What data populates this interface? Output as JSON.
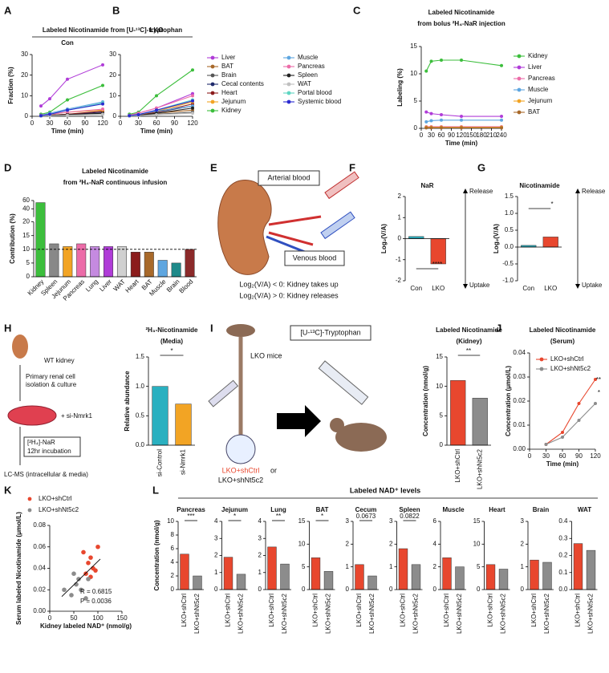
{
  "chart_data": [
    {
      "panel": "A",
      "type": "line",
      "title": "Labeled Nicotinamide from [U-¹³C]-tryptophan",
      "subtitle": "Con",
      "ylabel": "Fraction (%)",
      "xlabel": "Time (min)",
      "x": [
        15,
        30,
        60,
        120
      ],
      "xlim": [
        0,
        120
      ],
      "xticks": [
        0,
        30,
        60,
        90,
        120
      ],
      "ylim": [
        0,
        30
      ],
      "yticks": [
        0,
        10,
        20,
        30
      ],
      "series": [
        {
          "color": "#b03cd8",
          "values": [
            5,
            8.5,
            18,
            25
          ]
        },
        {
          "color": "#a8692a",
          "values": [
            0.3,
            0.6,
            1,
            1.5
          ]
        },
        {
          "color": "#555555",
          "values": [
            0.2,
            0.4,
            0.6,
            1
          ]
        },
        {
          "color": "#1f2a6b",
          "values": [
            0.3,
            0.5,
            1,
            2
          ]
        },
        {
          "color": "#8b1c1c",
          "values": [
            0.3,
            0.5,
            1,
            2.5
          ]
        },
        {
          "color": "#f2a424",
          "values": [
            0.5,
            1,
            2,
            3
          ]
        },
        {
          "color": "#3cbe3c",
          "values": [
            1,
            2,
            8,
            15
          ]
        },
        {
          "color": "#5ea6e0",
          "values": [
            0.5,
            1.5,
            3.5,
            7
          ]
        },
        {
          "color": "#ec6ca8",
          "values": [
            0.5,
            1,
            2,
            3.5
          ]
        },
        {
          "color": "#222222",
          "values": [
            0.2,
            0.4,
            0.8,
            1.5
          ]
        },
        {
          "color": "#c0c0c0",
          "values": [
            0.2,
            0.3,
            0.5,
            1
          ]
        },
        {
          "color": "#5fd6c2",
          "values": [
            0.3,
            1,
            3,
            6.5
          ]
        },
        {
          "color": "#2b2bd0",
          "values": [
            0.3,
            1,
            3,
            6
          ]
        }
      ]
    },
    {
      "panel": "B",
      "type": "line",
      "subtitle": "LKO",
      "xlabel": "Time (min)",
      "x": [
        15,
        30,
        60,
        120
      ],
      "xlim": [
        0,
        120
      ],
      "xticks": [
        0,
        30,
        60,
        90,
        120
      ],
      "ylim": [
        0,
        30
      ],
      "yticks": [
        0,
        10,
        20,
        30
      ],
      "series": [
        {
          "name": "Liver",
          "color": "#b03cd8",
          "values": [
            0.5,
            1.5,
            4,
            11
          ]
        },
        {
          "name": "BAT",
          "color": "#a8692a",
          "values": [
            0.3,
            0.5,
            1.5,
            3
          ]
        },
        {
          "name": "Brain",
          "color": "#555555",
          "values": [
            0.2,
            0.4,
            1,
            2
          ]
        },
        {
          "name": "Cecal contents",
          "color": "#1f2a6b",
          "values": [
            0.3,
            0.8,
            2,
            5
          ]
        },
        {
          "name": "Heart",
          "color": "#8b1c1c",
          "values": [
            0.3,
            0.7,
            2,
            6
          ]
        },
        {
          "name": "Jejunum",
          "color": "#f2a424",
          "values": [
            0.3,
            0.8,
            2.5,
            7
          ]
        },
        {
          "name": "Kidney",
          "color": "#3cbe3c",
          "values": [
            1,
            2,
            10,
            22.5
          ]
        },
        {
          "name": "Muscle",
          "color": "#5ea6e0",
          "values": [
            0.3,
            1,
            2.5,
            5
          ]
        },
        {
          "name": "Pancreas",
          "color": "#ec6ca8",
          "values": [
            0.5,
            1.5,
            4,
            10
          ]
        },
        {
          "name": "Spleen",
          "color": "#222222",
          "values": [
            0.2,
            0.5,
            1.5,
            4
          ]
        },
        {
          "name": "WAT",
          "color": "#c0c0c0",
          "values": [
            0.2,
            0.3,
            0.8,
            1.5
          ]
        },
        {
          "name": "Portal blood",
          "color": "#5fd6c2",
          "values": [
            0.3,
            0.8,
            3,
            8
          ]
        },
        {
          "name": "Systemic blood",
          "color": "#2b2bd0",
          "values": [
            0.3,
            0.8,
            3,
            7.5
          ]
        }
      ]
    },
    {
      "panel": "C",
      "type": "line",
      "title": "Labeled Nicotinamide",
      "subtitle": "from bolus ²H₄-NaR injection",
      "ylabel": "Labeling (%)",
      "xlabel": "Time (min)",
      "x": [
        15,
        30,
        60,
        120,
        240
      ],
      "xlim": [
        0,
        240
      ],
      "xticks": [
        0,
        30,
        60,
        90,
        120,
        150,
        180,
        210,
        240
      ],
      "ylim": [
        0,
        15
      ],
      "yticks": [
        0,
        5,
        10,
        15
      ],
      "series": [
        {
          "name": "Kidney",
          "color": "#3cbe3c",
          "values": [
            10.5,
            12.3,
            12.5,
            12.5,
            11.5
          ]
        },
        {
          "name": "Liver",
          "color": "#b03cd8",
          "values": [
            3,
            2.7,
            2.5,
            2.2,
            2.2
          ]
        },
        {
          "name": "Pancreas",
          "color": "#ec6ca8",
          "values": [
            0.3,
            0.3,
            0.3,
            0.3,
            0.3
          ]
        },
        {
          "name": "Muscle",
          "color": "#5ea6e0",
          "values": [
            1.2,
            1.4,
            1.5,
            1.5,
            1.5
          ]
        },
        {
          "name": "Jejunum",
          "color": "#f2a424",
          "values": [
            0.2,
            0.2,
            0.2,
            0.2,
            0.2
          ]
        },
        {
          "name": "BAT",
          "color": "#a8692a",
          "values": [
            0.1,
            0.1,
            0.1,
            0.1,
            0.1
          ]
        }
      ]
    },
    {
      "panel": "D",
      "type": "bar",
      "title": "Labeled Nicotinamide",
      "subtitle": "from ²H₄-NaR continuous infusion",
      "ylabel": "Contribution (%)",
      "categories": [
        "Kidney",
        "Spleen",
        "Jejunum",
        "Pancreas",
        "Lung",
        "Liver",
        "WAT",
        "Heart",
        "BAT",
        "Muscle",
        "Brain",
        "Blood"
      ],
      "values": [
        55,
        12,
        11,
        12,
        11,
        11,
        11,
        9,
        9,
        6,
        5,
        10
      ],
      "colors": [
        "#3cbe3c",
        "#888888",
        "#f2a424",
        "#ec6ca8",
        "#c58ae0",
        "#b03cd8",
        "#d0d0d0",
        "#8b1c1c",
        "#a8692a",
        "#5ea6e0",
        "#1f8a8a",
        "#8b2a2a"
      ],
      "ylim": [
        0,
        60
      ],
      "yticks": [
        0,
        5,
        10,
        15,
        20,
        40,
        60
      ],
      "axis_break": 20,
      "reference_line": 10
    },
    {
      "panel": "F",
      "type": "bar",
      "title": "NaR",
      "ylabel": "Log₂(V/A)",
      "categories": [
        "Con",
        "LKO"
      ],
      "values": [
        0.1,
        -1.2
      ],
      "colors": [
        "#2aa8b8",
        "#e8472e"
      ],
      "ylim": [
        -2,
        2
      ],
      "yticks": [
        -2,
        -1,
        0,
        1,
        2
      ],
      "annotation": "****",
      "arrow_labels": [
        "Release",
        "Uptake"
      ]
    },
    {
      "panel": "G",
      "type": "bar",
      "title": "Nicotinamide",
      "ylabel": "Log₂(V/A)",
      "categories": [
        "Con",
        "LKO"
      ],
      "values": [
        0.05,
        0.3
      ],
      "colors": [
        "#2aa8b8",
        "#e8472e"
      ],
      "ylim": [
        -1,
        1.5
      ],
      "yticks": [
        {
          "value": -1,
          "label": "-1.0"
        },
        -0.5,
        {
          "value": 0,
          "label": "0.0"
        },
        0.5,
        {
          "value": 1,
          "label": "1.0"
        },
        1.5
      ],
      "annotation": "*",
      "arrow_labels": [
        "Release",
        "Uptake"
      ]
    },
    {
      "type": "bar",
      "title": "²H₃-Nicotinamide",
      "subtitle": "(Media)",
      "ylabel": "Relative abundance",
      "categories": [
        "si-Control",
        "si-Nmrk1"
      ],
      "values": [
        1.0,
        0.7
      ],
      "colors": [
        "#2ab0c0",
        "#f2a424"
      ],
      "ylim": [
        0,
        1.5
      ],
      "yticks": [
        {
          "value": 0,
          "label": "0.0"
        },
        0.5,
        {
          "value": 1,
          "label": "1.0"
        },
        1.5
      ],
      "annotation": "*"
    },
    {
      "type": "bar",
      "title": "Labeled Nicotinamide",
      "subtitle": "(Kidney)",
      "ylabel": "Concentration (nmol/g)",
      "categories": [
        "LKO+shCtrl",
        "LKO+shNt5c2"
      ],
      "values": [
        11,
        8
      ],
      "colors": [
        "#e8472e",
        "#8c8c8c"
      ],
      "ylim": [
        0,
        15
      ],
      "yticks": [
        0,
        5,
        10,
        15
      ],
      "annotation": "**"
    },
    {
      "panel": "J",
      "type": "line",
      "title": "Labeled Nicotinamide",
      "subtitle": "(Serum)",
      "ylabel": "Concentration (μmol/L)",
      "xlabel": "Time (min)",
      "x": [
        30,
        60,
        90,
        120
      ],
      "xlim": [
        0,
        120
      ],
      "xticks": [
        0,
        30,
        60,
        90,
        120
      ],
      "ylim": [
        0,
        0.04
      ],
      "yticks": [
        {
          "value": 0,
          "label": "0.00"
        },
        {
          "value": 0.01,
          "label": "0.01"
        },
        {
          "value": 0.02,
          "label": "0.02"
        },
        {
          "value": 0.03,
          "label": "0.03"
        },
        {
          "value": 0.04,
          "label": "0.04"
        }
      ],
      "series": [
        {
          "name": "LKO+shCtrl",
          "color": "#e8472e",
          "values": [
            0.002,
            0.007,
            0.019,
            0.029
          ]
        },
        {
          "name": "LKO+shNt5c2",
          "color": "#8c8c8c",
          "values": [
            0.002,
            0.005,
            0.012,
            0.019
          ]
        }
      ],
      "annotations": [
        "**",
        "*"
      ]
    },
    {
      "panel": "K",
      "type": "scatter",
      "ylabel": "Serum labeled Nicotinamide (μmol/L)",
      "xlabel": "Kidney labeled NAD⁺ (nmol/g)",
      "xlim": [
        0,
        150
      ],
      "xticks": [
        0,
        50,
        100,
        150
      ],
      "ylim": [
        0,
        0.08
      ],
      "yticks": [
        {
          "value": 0,
          "label": "0.00"
        },
        {
          "value": 0.02,
          "label": "0.02"
        },
        {
          "value": 0.04,
          "label": "0.04"
        },
        {
          "value": 0.06,
          "label": "0.06"
        },
        {
          "value": 0.08,
          "label": "0.08"
        }
      ],
      "series": [
        {
          "name": "LKO+shCtrl",
          "color": "#e8472e",
          "x": [
            80,
            85,
            90,
            75,
            95,
            85,
            70,
            100
          ],
          "y": [
            0.045,
            0.05,
            0.04,
            0.035,
            0.038,
            0.032,
            0.055,
            0.06
          ]
        },
        {
          "name": "LKO+shNt5c2",
          "color": "#8c8c8c",
          "x": [
            30,
            45,
            55,
            65,
            60,
            75,
            80,
            50
          ],
          "y": [
            0.02,
            0.015,
            0.025,
            0.02,
            0.03,
            0.012,
            0.03,
            0.035
          ]
        }
      ],
      "annotations": [
        "R = 0.6815",
        "P = 0.0036"
      ],
      "trend_line": true
    },
    {
      "panel": "L",
      "type": "bar",
      "title": "Pancreas",
      "ylabel": "Concentration (nmol/g)",
      "categories": [
        "LKO+shCtrl",
        "LKO+shNt5c2"
      ],
      "values": [
        5.2,
        2.0
      ],
      "colors": [
        "#e8472e",
        "#8c8c8c"
      ],
      "ylim": [
        0,
        10
      ],
      "yticks": [
        0,
        2,
        4,
        6,
        8,
        10
      ],
      "annotation": "***"
    },
    {
      "type": "bar",
      "title": "Jejunum",
      "categories": [
        "LKO+shCtrl",
        "LKO+shNt5c2"
      ],
      "values": [
        1.9,
        0.9
      ],
      "colors": [
        "#e8472e",
        "#8c8c8c"
      ],
      "ylim": [
        0,
        4
      ],
      "yticks": [
        0,
        1,
        2,
        3,
        4
      ],
      "annotation": "*"
    },
    {
      "type": "bar",
      "title": "Lung",
      "categories": [
        "LKO+shCtrl",
        "LKO+shNt5c2"
      ],
      "values": [
        2.5,
        1.5
      ],
      "colors": [
        "#e8472e",
        "#8c8c8c"
      ],
      "ylim": [
        0,
        4
      ],
      "yticks": [
        0,
        1,
        2,
        3,
        4
      ],
      "annotation": "**"
    },
    {
      "type": "bar",
      "title": "BAT",
      "categories": [
        "LKO+shCtrl",
        "LKO+shNt5c2"
      ],
      "values": [
        7,
        4
      ],
      "colors": [
        "#e8472e",
        "#8c8c8c"
      ],
      "ylim": [
        0,
        15
      ],
      "yticks": [
        0,
        5,
        10,
        15
      ],
      "annotation": "*"
    },
    {
      "type": "bar",
      "title": "Cecum",
      "categories": [
        "LKO+shCtrl",
        "LKO+shNt5c2"
      ],
      "values": [
        1.1,
        0.6
      ],
      "colors": [
        "#e8472e",
        "#8c8c8c"
      ],
      "ylim": [
        0,
        3
      ],
      "yticks": [
        0,
        1,
        2,
        3
      ],
      "annotation": "0.0673"
    },
    {
      "type": "bar",
      "title": "Spleen",
      "categories": [
        "LKO+shCtrl",
        "LKO+shNt5c2"
      ],
      "values": [
        1.8,
        1.1
      ],
      "colors": [
        "#e8472e",
        "#8c8c8c"
      ],
      "ylim": [
        0,
        3
      ],
      "yticks": [
        0,
        1,
        2,
        3
      ],
      "annotation": "0.0822"
    },
    {
      "type": "bar",
      "title": "Muscle",
      "categories": [
        "LKO+shCtrl",
        "LKO+shNt5c2"
      ],
      "values": [
        2.8,
        2.0
      ],
      "colors": [
        "#e8472e",
        "#8c8c8c"
      ],
      "ylim": [
        0,
        6
      ],
      "yticks": [
        0,
        2,
        4,
        6
      ]
    },
    {
      "type": "bar",
      "title": "Heart",
      "categories": [
        "LKO+shCtrl",
        "LKO+shNt5c2"
      ],
      "values": [
        5.5,
        4.5
      ],
      "colors": [
        "#e8472e",
        "#8c8c8c"
      ],
      "ylim": [
        0,
        15
      ],
      "yticks": [
        0,
        5,
        10,
        15
      ]
    },
    {
      "type": "bar",
      "title": "Brain",
      "categories": [
        "LKO+shCtrl",
        "LKO+shNt5c2"
      ],
      "values": [
        1.3,
        1.2
      ],
      "colors": [
        "#e8472e",
        "#8c8c8c"
      ],
      "ylim": [
        0,
        3
      ],
      "yticks": [
        0,
        1,
        2,
        3
      ]
    },
    {
      "type": "bar",
      "title": "WAT",
      "categories": [
        "LKO+shCtrl",
        "LKO+shNt5c2"
      ],
      "values": [
        0.27,
        0.23
      ],
      "colors": [
        "#e8472e",
        "#8c8c8c"
      ],
      "ylim": [
        0,
        0.4
      ],
      "yticks": [
        {
          "value": 0,
          "label": "0.0"
        },
        0.1,
        0.2,
        0.3,
        0.4
      ]
    }
  ],
  "group_titles": {
    "L": "Labeled NAD⁺ levels"
  },
  "diagrams": {
    "E": {
      "panel": "E",
      "arterial": "Arterial blood",
      "venous": "Venous blood",
      "rule_uptake": "Log₂(V/A) < 0: Kidney takes up",
      "rule_release": "Log₂(V/A) > 0: Kidney releases"
    },
    "H": {
      "panel": "H",
      "kidney": "WT kidney",
      "step1": [
        "Primary renal cell",
        "isolation & culture"
      ],
      "treatment": "+ si-Nmrk1",
      "step2": [
        "[²H₄]-NaR",
        "12hr incubation"
      ],
      "readout": "LC-MS (intracellular & media)"
    },
    "I": {
      "panel": "I",
      "mice": "LKO mice",
      "tracer": "[U-¹³C]-Tryptophan",
      "group1": "LKO+shCtrl",
      "or": "or",
      "group2": "LKO+shNt5c2"
    }
  }
}
